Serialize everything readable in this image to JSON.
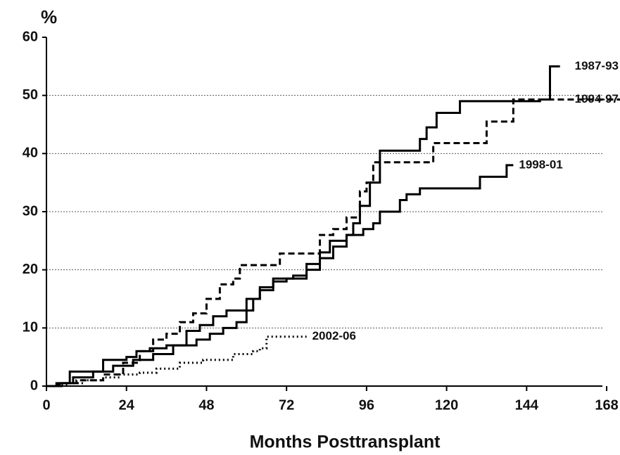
{
  "chart_data": {
    "type": "step-line",
    "y_label": "%",
    "x_label": "Months Posttransplant",
    "xlim": [
      0,
      172
    ],
    "xticks": [
      0,
      24,
      48,
      72,
      96,
      120,
      144,
      168
    ],
    "ylim": [
      0,
      60
    ],
    "yticks": [
      0,
      10,
      20,
      30,
      40,
      50,
      60
    ],
    "grid": true,
    "series": [
      {
        "name": "1987-93",
        "color": "#000000",
        "style": "solid",
        "x": [
          0,
          3,
          7,
          11,
          17,
          24,
          27,
          31,
          36,
          40,
          45,
          49,
          53,
          57,
          60,
          62,
          64,
          68,
          72,
          78,
          82,
          86,
          90,
          92,
          94,
          97,
          100,
          110,
          112,
          114,
          117,
          124,
          148,
          151,
          154
        ],
        "values": [
          0,
          0.5,
          2.5,
          2.5,
          4.5,
          5,
          6,
          6.5,
          7,
          7,
          8,
          9,
          10,
          11,
          13,
          15,
          16.5,
          18,
          18.5,
          20,
          22,
          24,
          26,
          28,
          31,
          35,
          40.5,
          40.5,
          42.5,
          44.5,
          47,
          49,
          49.3,
          55,
          55
        ]
      },
      {
        "name": "1994-97",
        "color": "#000000",
        "style": "dashed",
        "x": [
          0,
          5,
          9,
          17,
          23,
          28,
          32,
          36,
          40,
          44,
          48,
          52,
          56,
          58,
          70,
          76,
          82,
          86,
          90,
          94,
          96,
          98,
          116,
          132,
          140,
          172
        ],
        "values": [
          0,
          0.5,
          1,
          2,
          4,
          6,
          8,
          9,
          11,
          12.5,
          15,
          17.5,
          18.5,
          20.8,
          22.8,
          22.8,
          26,
          27,
          29,
          33.5,
          35,
          38.5,
          41.8,
          45.5,
          49.3,
          49.3
        ]
      },
      {
        "name": "1998-01",
        "color": "#000000",
        "style": "solid",
        "x": [
          0,
          4,
          8,
          14,
          20,
          26,
          32,
          38,
          42,
          46,
          50,
          54,
          60,
          64,
          68,
          74,
          78,
          82,
          85,
          90,
          95,
          98,
          100,
          106,
          108,
          112,
          130,
          138,
          140
        ],
        "values": [
          0,
          0.5,
          1.5,
          2.5,
          3.5,
          4.5,
          5.5,
          7,
          9.5,
          10.5,
          12,
          13,
          15,
          17,
          18.5,
          19,
          21,
          23,
          25,
          26,
          27,
          28,
          30,
          32,
          33,
          34,
          36,
          38,
          38
        ]
      },
      {
        "name": "2002-06",
        "color": "#000000",
        "style": "dotted",
        "x": [
          0,
          3,
          7,
          11,
          17,
          22,
          28,
          33,
          40,
          47,
          56,
          62,
          64,
          66,
          70,
          78
        ],
        "values": [
          0,
          0.3,
          0.5,
          1,
          1.5,
          2,
          2.3,
          3,
          4,
          4.5,
          5.5,
          6,
          6.5,
          8.5,
          8.5,
          8.5
        ]
      }
    ]
  }
}
